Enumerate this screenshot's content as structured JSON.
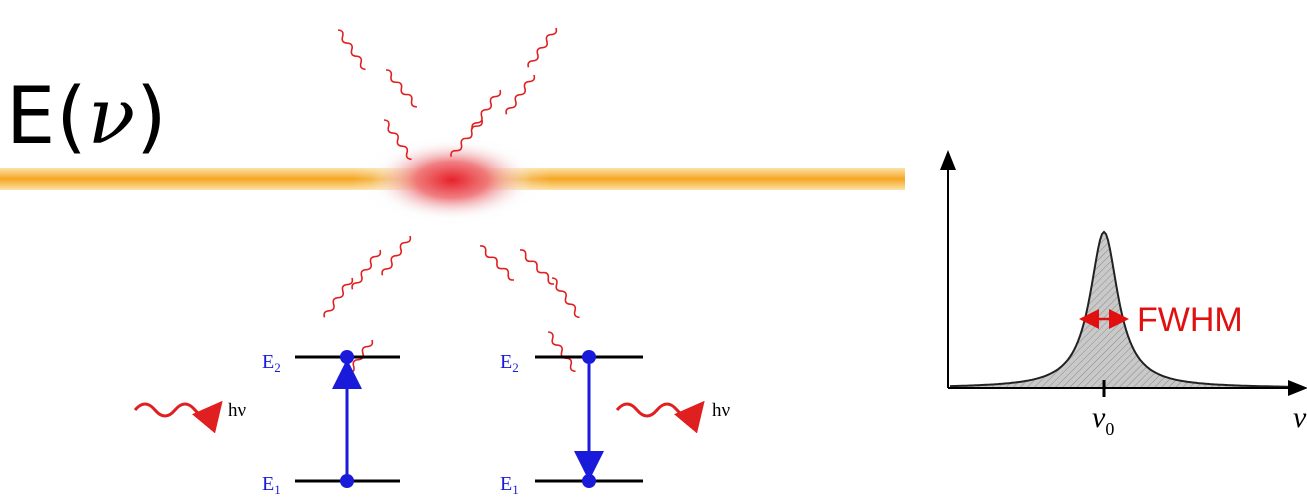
{
  "title": {
    "prefix": "E(",
    "variable": "ν",
    "suffix": ")"
  },
  "colors": {
    "beam": "#f5a623",
    "glow": "#e8202a",
    "photon": "#e02020",
    "transition": "#1a1adb",
    "level": "#000000",
    "fwhm": "#e01010",
    "curve_fill": "#c8c8c8"
  },
  "absorption": {
    "upper_label": "E",
    "upper_sub": "2",
    "lower_label": "E",
    "lower_sub": "1",
    "photon_label": "hν"
  },
  "emission": {
    "upper_label": "E",
    "upper_sub": "2",
    "lower_label": "E",
    "lower_sub": "1",
    "photon_label": "hν"
  },
  "lineshape": {
    "peak_label": "ν",
    "peak_sub": "0",
    "axis_label": "ν",
    "width_label": "FWHM"
  }
}
